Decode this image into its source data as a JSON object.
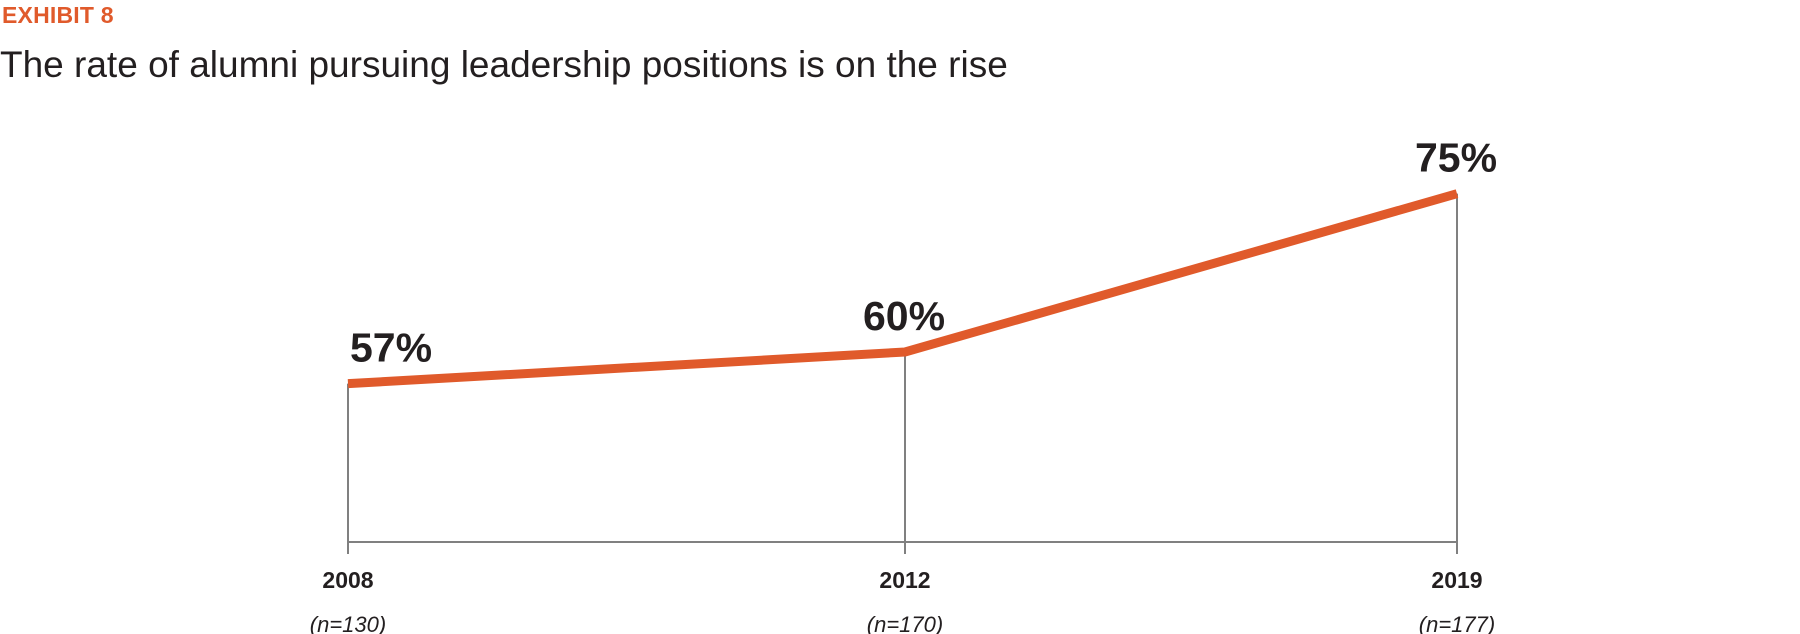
{
  "header": {
    "exhibit": "EXHIBIT 8",
    "title": "The rate of alumni pursuing leadership positions is on the rise"
  },
  "chart_data": {
    "type": "line",
    "title": "The rate of alumni pursuing leadership positions is on the rise",
    "x": [
      "2008",
      "2012",
      "2019"
    ],
    "sample_sizes": [
      "(n=130)",
      "(n=170)",
      "(n=177)"
    ],
    "values": [
      57,
      60,
      75
    ],
    "value_labels": [
      "57%",
      "60%",
      "75%"
    ],
    "ylim": [
      42,
      78
    ],
    "line_color": "#e05a2b",
    "axis_color": "#808080",
    "grid": false,
    "legend": "none"
  }
}
